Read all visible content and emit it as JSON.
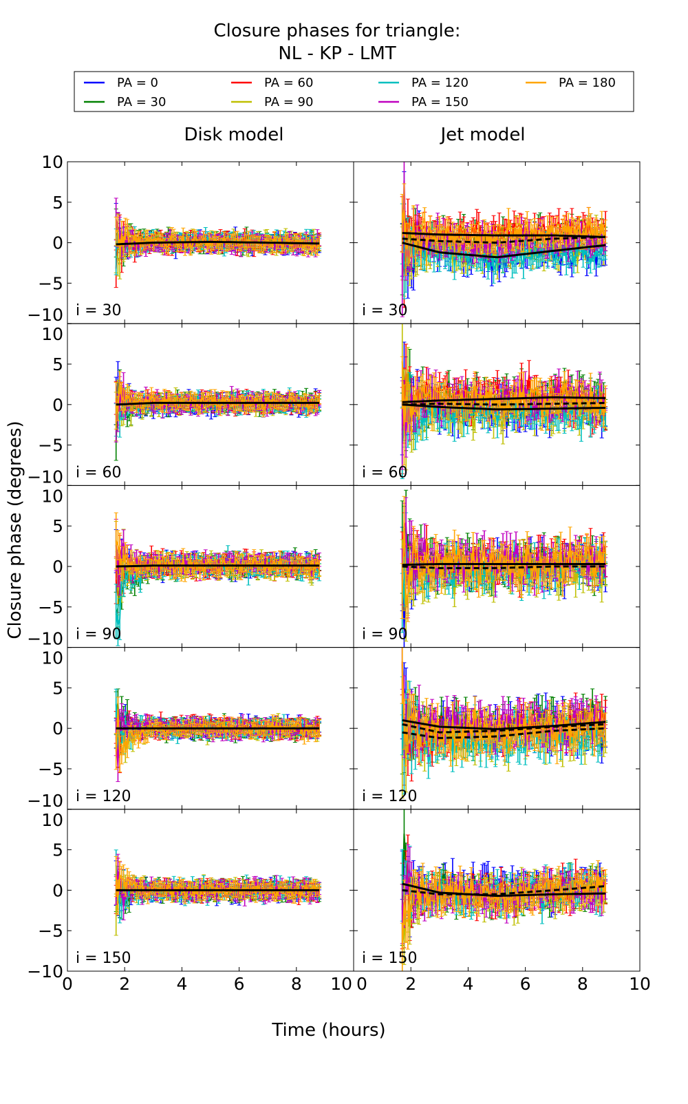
{
  "chart_data": {
    "type": "line",
    "title_line1": "Closure phases for triangle:",
    "title_line2": "NL - KP - LMT",
    "xlabel": "Time (hours)",
    "ylabel": "Closure phase (degrees)",
    "xlim": [
      0,
      10
    ],
    "ylim": [
      -10,
      10
    ],
    "xticks": [
      0,
      2,
      4,
      6,
      8,
      10
    ],
    "yticks": [
      10,
      5,
      0,
      -5,
      -10
    ],
    "grid": false,
    "legend_placement": "top",
    "column_titles": [
      "Disk model",
      "Jet model"
    ],
    "row_labels": [
      "i = 30",
      "i = 60",
      "i = 90",
      "i = 120",
      "i = 150"
    ],
    "series": [
      {
        "name": "PA = 0",
        "color": "#0000ff"
      },
      {
        "name": "PA = 30",
        "color": "#008000"
      },
      {
        "name": "PA = 60",
        "color": "#ff0000"
      },
      {
        "name": "PA = 90",
        "color": "#bfbf00"
      },
      {
        "name": "PA = 120",
        "color": "#00bfbf"
      },
      {
        "name": "PA = 150",
        "color": "#bf00bf"
      },
      {
        "name": "PA = 180",
        "color": "#ffa500"
      }
    ],
    "time_range_hours": [
      1.7,
      8.8
    ],
    "sample_times": [
      1.7,
      3,
      5,
      7,
      8.8
    ],
    "panels": [
      {
        "model": "Disk model",
        "row": "i = 30",
        "spread_deg": 0.4,
        "early_spread_deg": 2.5,
        "error_deg": 0.8,
        "means": [
          [
            -0.3,
            0,
            0,
            0,
            -0.2
          ],
          [
            0,
            0.2,
            0.1,
            0,
            0
          ],
          [
            0,
            0.1,
            0.1,
            0,
            0
          ],
          [
            0,
            0.1,
            0.1,
            0,
            0
          ],
          [
            -0.3,
            0,
            0,
            0,
            0
          ],
          [
            -0.5,
            0,
            0,
            0,
            -0.2
          ],
          [
            0.5,
            0.1,
            0,
            0,
            0
          ]
        ],
        "model_curves": [
          {
            "style": "solid",
            "values": [
              -0.2,
              0,
              0.1,
              0,
              -0.1
            ]
          }
        ]
      },
      {
        "model": "Jet model",
        "row": "i = 30",
        "spread_deg": 0.8,
        "early_spread_deg": 4,
        "error_deg": 1.3,
        "means": [
          [
            0,
            -1.2,
            -1.8,
            -1.0,
            -1.2
          ],
          [
            0.5,
            0.6,
            0.5,
            0.8,
            1.0
          ],
          [
            1.2,
            1.3,
            1.2,
            1.6,
            1.8
          ],
          [
            0,
            -1.0,
            -1.6,
            -0.8,
            0
          ],
          [
            0,
            -1.4,
            -1.8,
            -1.3,
            -0.5
          ],
          [
            0.5,
            0.3,
            0.2,
            0.5,
            0.8
          ],
          [
            1.0,
            0.8,
            0.4,
            1.0,
            1.5
          ]
        ],
        "model_curves": [
          {
            "style": "solid",
            "values": [
              1.2,
              1.0,
              0.9,
              0.9,
              0.7
            ]
          },
          {
            "style": "solid",
            "values": [
              0,
              -1.2,
              -1.8,
              -1.0,
              -0.3
            ]
          },
          {
            "style": "dashed",
            "values": [
              0.5,
              0.2,
              0,
              0.5,
              0.7
            ]
          }
        ]
      },
      {
        "model": "Disk model",
        "row": "i = 60",
        "spread_deg": 0.4,
        "early_spread_deg": 2.5,
        "error_deg": 0.8,
        "means": [
          [
            0,
            0.1,
            0,
            0.1,
            0
          ],
          [
            -1,
            0.2,
            0.2,
            0.2,
            0.5
          ],
          [
            0,
            0.3,
            0.3,
            0.2,
            0
          ],
          [
            0,
            0.1,
            0.2,
            0.1,
            0
          ],
          [
            0,
            0.2,
            0.2,
            0.3,
            0
          ],
          [
            0,
            0.2,
            0.2,
            0.3,
            0
          ],
          [
            0.5,
            0.4,
            0.4,
            0.3,
            0.3
          ]
        ],
        "model_curves": [
          {
            "style": "solid",
            "values": [
              0,
              0.2,
              0.2,
              0.2,
              0.2
            ]
          }
        ]
      },
      {
        "model": "Jet model",
        "row": "i = 60",
        "spread_deg": 1.0,
        "early_spread_deg": 4,
        "error_deg": 1.5,
        "means": [
          [
            0,
            -0.5,
            -0.6,
            -0.4,
            -0.5
          ],
          [
            0.5,
            0.8,
            0.8,
            1.0,
            1.0
          ],
          [
            0.5,
            1.0,
            1.0,
            1.0,
            -1.0
          ],
          [
            -1,
            -1.0,
            -0.8,
            -0.8,
            -0.5
          ],
          [
            -1,
            -0.7,
            -0.8,
            -0.5,
            -0.5
          ],
          [
            0.5,
            0.6,
            0.8,
            0.8,
            0.5
          ],
          [
            1.0,
            0.6,
            0.5,
            0.6,
            0.8
          ]
        ],
        "model_curves": [
          {
            "style": "solid",
            "values": [
              0.3,
              0.5,
              0.7,
              0.9,
              0.8
            ]
          },
          {
            "style": "solid",
            "values": [
              0,
              -0.3,
              -0.6,
              -0.5,
              -0.4
            ]
          },
          {
            "style": "dashed",
            "values": [
              0,
              0.1,
              0,
              0.1,
              0.2
            ]
          }
        ]
      },
      {
        "model": "Disk model",
        "row": "i = 90",
        "spread_deg": 0.5,
        "early_spread_deg": 3,
        "error_deg": 0.9,
        "means": [
          [
            -1,
            0.1,
            0.1,
            0.2,
            0.3
          ],
          [
            -3,
            0,
            0.2,
            0.2,
            0.3
          ],
          [
            0,
            0.2,
            0.2,
            0.2,
            0.2
          ],
          [
            0,
            0.1,
            0.1,
            0.1,
            -0.5
          ],
          [
            -2,
            0,
            0.1,
            0.1,
            0
          ],
          [
            0,
            0.2,
            0.2,
            0.2,
            0.3
          ],
          [
            0.5,
            0.2,
            0.2,
            0.2,
            0
          ]
        ],
        "model_curves": [
          {
            "style": "solid",
            "values": [
              0,
              0.1,
              0.1,
              0.1,
              0.1
            ]
          }
        ]
      },
      {
        "model": "Jet model",
        "row": "i = 90",
        "spread_deg": 1.1,
        "early_spread_deg": 4,
        "error_deg": 1.6,
        "means": [
          [
            -1,
            -0.3,
            0,
            0.2,
            0
          ],
          [
            1,
            0.5,
            0.3,
            0.4,
            0.5
          ],
          [
            2,
            0.6,
            0.4,
            0.5,
            1
          ],
          [
            -2,
            -0.8,
            -0.5,
            -0.5,
            -0.5
          ],
          [
            -1,
            -0.5,
            -0.3,
            0,
            1
          ],
          [
            1,
            0.6,
            0.6,
            0.5,
            0.5
          ],
          [
            0,
            0.5,
            0.2,
            0.4,
            0.8
          ]
        ],
        "model_curves": [
          {
            "style": "solid",
            "values": [
              0.2,
              0.3,
              0.3,
              0.3,
              0.3
            ]
          },
          {
            "style": "dashed",
            "values": [
              0,
              -0.2,
              -0.2,
              0,
              0
            ]
          }
        ]
      },
      {
        "model": "Disk model",
        "row": "i = 120",
        "spread_deg": 0.4,
        "early_spread_deg": 2.5,
        "error_deg": 0.8,
        "means": [
          [
            0,
            0,
            0,
            0,
            0
          ],
          [
            1,
            0,
            0,
            0,
            0
          ],
          [
            0,
            0.1,
            0.1,
            0,
            0
          ],
          [
            -1,
            0,
            0,
            0,
            -0.2
          ],
          [
            0,
            0,
            0,
            0,
            0
          ],
          [
            0,
            0.1,
            0,
            0.1,
            0
          ],
          [
            -2,
            0,
            0,
            0,
            0
          ]
        ],
        "model_curves": [
          {
            "style": "solid",
            "values": [
              0,
              0,
              0,
              0,
              0
            ]
          }
        ]
      },
      {
        "model": "Jet model",
        "row": "i = 120",
        "spread_deg": 1.1,
        "early_spread_deg": 4,
        "error_deg": 1.6,
        "means": [
          [
            1,
            0,
            0.3,
            0.5,
            0.5
          ],
          [
            1,
            0.2,
            0.5,
            0.8,
            1.0
          ],
          [
            0,
            -1,
            -0.5,
            0,
            0.5
          ],
          [
            -1,
            -1.5,
            -1.2,
            -0.8,
            -1
          ],
          [
            -1,
            -1.2,
            -1,
            -0.5,
            -1
          ],
          [
            1,
            0.3,
            0.5,
            0.8,
            0.8
          ],
          [
            0,
            -0.5,
            -0.3,
            0,
            0
          ]
        ],
        "model_curves": [
          {
            "style": "solid",
            "values": [
              1.0,
              0.2,
              -0.1,
              0.3,
              0.8
            ]
          },
          {
            "style": "dashed",
            "values": [
              -0.5,
              -1.2,
              -1.0,
              -0.3,
              0
            ]
          },
          {
            "style": "dashed",
            "values": [
              0.5,
              -0.5,
              -0.3,
              0.2,
              0.5
            ]
          }
        ]
      },
      {
        "model": "Disk model",
        "row": "i = 150",
        "spread_deg": 0.4,
        "early_spread_deg": 2,
        "error_deg": 0.8,
        "means": [
          [
            0,
            0,
            0,
            0,
            0
          ],
          [
            -1,
            0,
            0,
            0,
            0
          ],
          [
            0,
            0,
            0,
            0,
            0
          ],
          [
            0,
            0,
            0,
            0,
            0
          ],
          [
            0,
            0,
            0,
            0,
            0
          ],
          [
            0,
            0,
            0,
            0,
            0
          ],
          [
            1,
            0.1,
            0,
            0,
            0
          ]
        ],
        "model_curves": [
          {
            "style": "solid",
            "values": [
              0,
              0,
              0,
              0,
              0
            ]
          }
        ]
      },
      {
        "model": "Jet model",
        "row": "i = 150",
        "spread_deg": 0.9,
        "early_spread_deg": 4,
        "error_deg": 1.4,
        "means": [
          [
            1,
            0,
            0,
            0.3,
            1
          ],
          [
            0,
            -0.2,
            -0.5,
            0,
            0
          ],
          [
            0,
            -0.5,
            -0.5,
            0,
            0.5
          ],
          [
            -1,
            -0.8,
            -0.8,
            -0.3,
            0
          ],
          [
            0,
            -0.3,
            -0.5,
            0,
            0.5
          ],
          [
            0,
            -0.5,
            -0.8,
            -0.3,
            0
          ],
          [
            1,
            -0.2,
            -0.5,
            0,
            0.5
          ]
        ],
        "model_curves": [
          {
            "style": "solid",
            "values": [
              0.8,
              -0.3,
              -0.7,
              -0.5,
              -0.4
            ]
          },
          {
            "style": "dashed",
            "values": [
              0,
              -0.5,
              -0.5,
              0,
              0.5
            ]
          }
        ]
      }
    ]
  }
}
